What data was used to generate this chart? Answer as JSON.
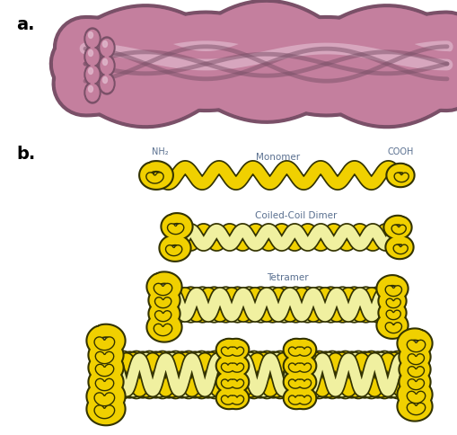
{
  "bg_color": "#ffffff",
  "label_a": "a.",
  "label_b": "b.",
  "fiber_color": "#c47f9e",
  "fiber_dark": "#a06080",
  "fiber_light": "#e0b8cc",
  "fiber_outline": "#7a5068",
  "yellow_fill": "#f0d000",
  "yellow_light": "#f0f0a0",
  "yellow_outline": "#333300",
  "text_color": "#5a7090",
  "label_monomer": "Monomer",
  "label_dimer": "Coiled-Coil Dimer",
  "label_tetramer": "Tetramer",
  "label_nh2": "NH₂",
  "label_cooh": "COOH"
}
